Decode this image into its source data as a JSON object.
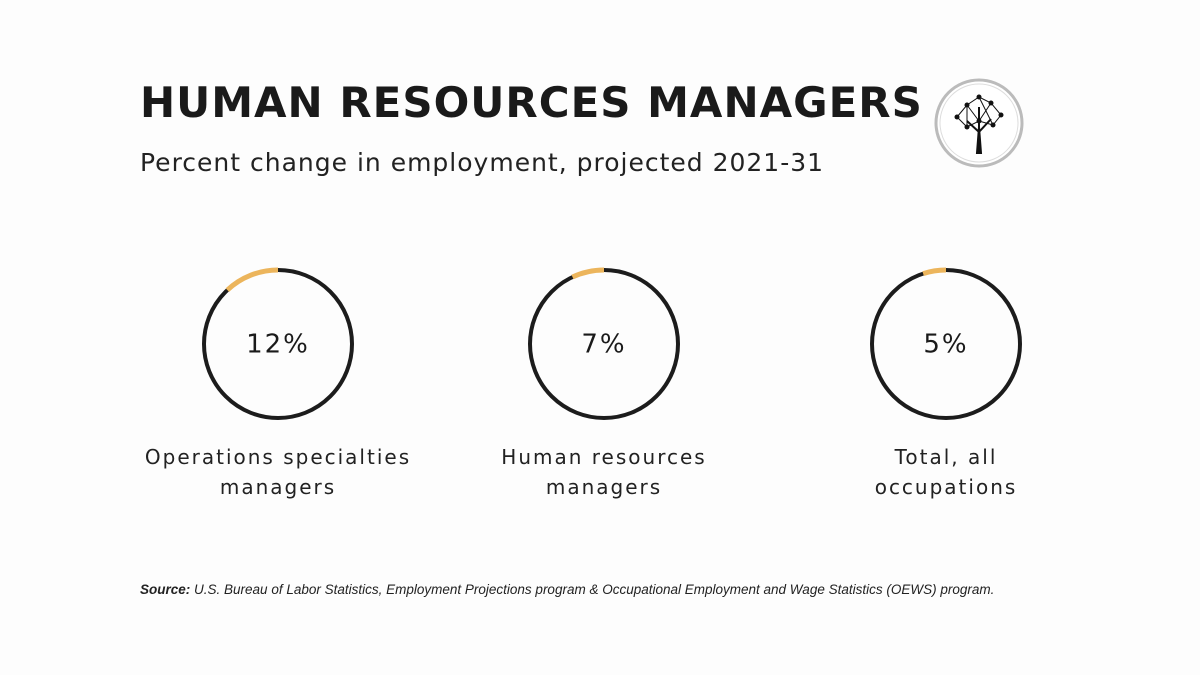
{
  "chart_data": {
    "type": "donut",
    "title": "HUMAN RESOURCES MANAGERS",
    "subtitle": "Percent change in employment, projected 2021-31",
    "categories": [
      "Operations specialties managers",
      "Human resources managers",
      "Total, all occupations"
    ],
    "values": [
      12,
      7,
      5
    ],
    "value_labels": [
      "12%",
      "7%",
      "5%"
    ],
    "color": "#ecb55c",
    "track_color": "#1c1c1c",
    "source_label": "Source:",
    "source": "U.S. Bureau of Labor Statistics, Employment Projections program & Occupational Employment and Wage Statistics (OEWS) program."
  }
}
